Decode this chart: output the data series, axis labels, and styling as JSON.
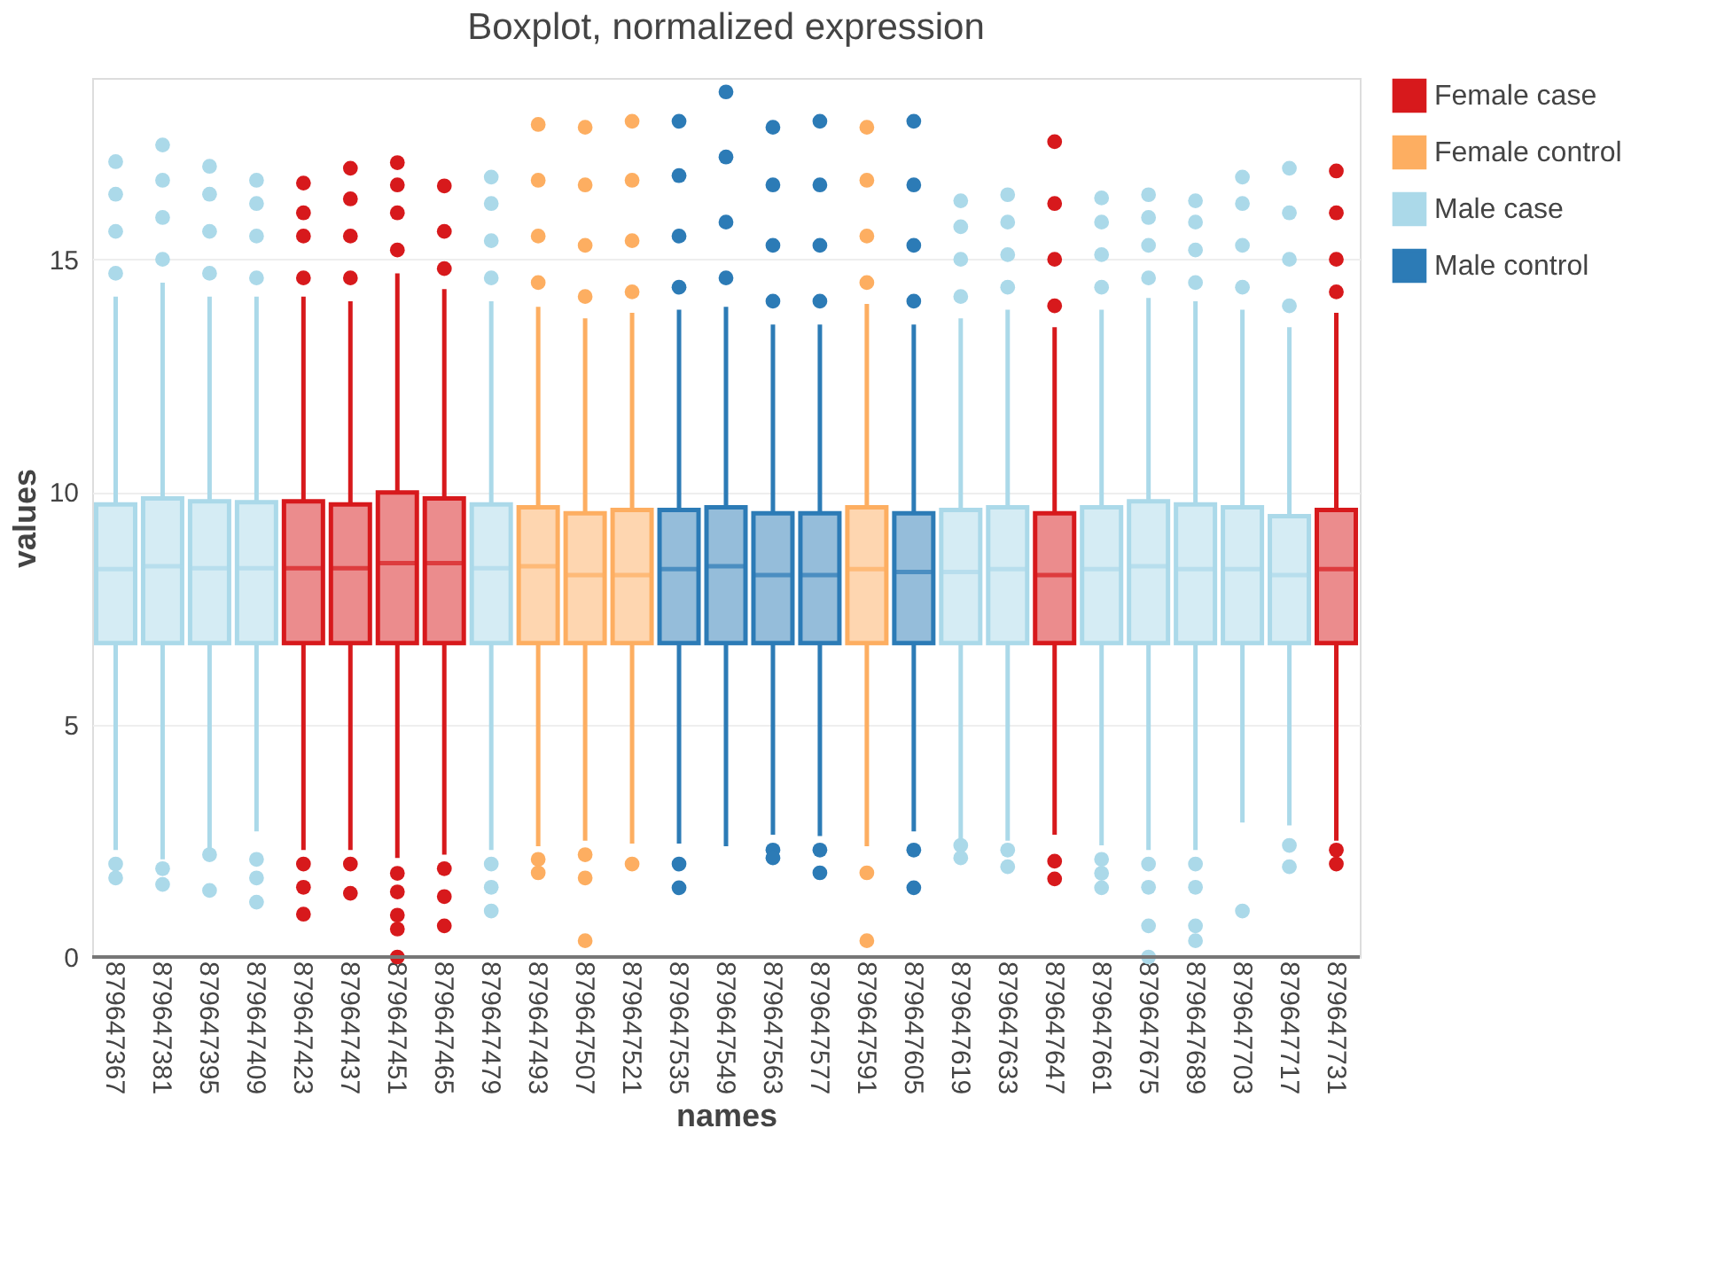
{
  "chart_data": {
    "type": "box",
    "title": "Boxplot, normalized expression",
    "xlabel": "names",
    "ylabel": "values",
    "categories": [
      "879647367",
      "879647381",
      "879647395",
      "879647409",
      "879647423",
      "879647437",
      "879647451",
      "879647465",
      "879647479",
      "879647493",
      "879647507",
      "879647521",
      "879647535",
      "879647549",
      "879647563",
      "879647577",
      "879647591",
      "879647605",
      "879647619",
      "879647633",
      "879647647",
      "879647661",
      "879647675",
      "879647689",
      "879647703",
      "879647717",
      "879647731"
    ],
    "ylim": [
      0,
      18.9
    ],
    "yticks": [
      0,
      5,
      10,
      15
    ],
    "grid": "y",
    "legend": "top right",
    "series": [
      {
        "name": "Female case",
        "color": "#d7191c",
        "boxes": [
          null,
          null,
          null,
          null,
          {
            "low": 2.3,
            "q1": 6.75,
            "median": 8.36,
            "q3": 9.8,
            "high": 14.2,
            "outliers": [
              14.6,
              15.5,
              16.0,
              16.64,
              2.0,
              1.5,
              0.92
            ]
          },
          {
            "low": 2.3,
            "q1": 6.75,
            "median": 8.36,
            "q3": 9.73,
            "high": 14.1,
            "outliers": [
              14.6,
              15.5,
              16.3,
              16.96,
              2.0,
              1.37
            ]
          },
          {
            "low": 2.13,
            "q1": 6.75,
            "median": 8.47,
            "q3": 9.99,
            "high": 14.7,
            "outliers": [
              15.2,
              16.0,
              16.6,
              17.08,
              1.8,
              1.4,
              0.9,
              0.6,
              0.0
            ]
          },
          {
            "low": 2.2,
            "q1": 6.75,
            "median": 8.47,
            "q3": 9.86,
            "high": 14.36,
            "outliers": [
              14.8,
              15.6,
              16.58,
              1.9,
              1.3,
              0.67
            ]
          },
          null,
          null,
          null,
          null,
          null,
          null,
          null,
          null,
          null,
          null,
          null,
          null,
          {
            "low": 2.63,
            "q1": 6.75,
            "median": 8.21,
            "q3": 9.54,
            "high": 13.54,
            "outliers": [
              14.0,
              15.0,
              16.2,
              17.53,
              2.06,
              1.68
            ]
          },
          null,
          null,
          null,
          null,
          null,
          {
            "low": 2.5,
            "q1": 6.75,
            "median": 8.34,
            "q3": 9.61,
            "high": 13.85,
            "outliers": [
              14.3,
              15.0,
              16.0,
              16.9,
              2.3,
              2.0
            ]
          }
        ]
      },
      {
        "name": "Female control",
        "color": "#fdae61",
        "boxes": [
          null,
          null,
          null,
          null,
          null,
          null,
          null,
          null,
          null,
          {
            "low": 2.38,
            "q1": 6.75,
            "median": 8.4,
            "q3": 9.67,
            "high": 13.98,
            "outliers": [
              14.5,
              15.5,
              16.7,
              17.9,
              2.1,
              1.81
            ]
          },
          {
            "low": 2.5,
            "q1": 6.75,
            "median": 8.21,
            "q3": 9.54,
            "high": 13.73,
            "outliers": [
              14.2,
              15.3,
              16.6,
              17.84,
              2.2,
              1.7,
              0.35
            ]
          },
          {
            "low": 2.44,
            "q1": 6.75,
            "median": 8.21,
            "q3": 9.61,
            "high": 13.85,
            "outliers": [
              14.3,
              15.4,
              16.7,
              17.97,
              2.0
            ]
          },
          null,
          null,
          null,
          null,
          {
            "low": 2.38,
            "q1": 6.75,
            "median": 8.34,
            "q3": 9.67,
            "high": 14.04,
            "outliers": [
              14.5,
              15.5,
              16.7,
              17.84,
              1.81,
              0.35
            ]
          },
          null,
          null,
          null,
          null,
          null,
          null,
          null,
          null,
          null,
          null
        ]
      },
      {
        "name": "Male case",
        "color": "#abd9e9",
        "boxes": [
          {
            "low": 2.3,
            "q1": 6.75,
            "median": 8.34,
            "q3": 9.73,
            "high": 14.2,
            "outliers": [
              14.7,
              15.6,
              16.4,
              17.1,
              2.0,
              1.7
            ]
          },
          {
            "low": 2.1,
            "q1": 6.75,
            "median": 8.4,
            "q3": 9.86,
            "high": 14.5,
            "outliers": [
              15.0,
              15.9,
              16.7,
              17.46,
              1.9,
              1.56
            ]
          },
          {
            "low": 2.3,
            "q1": 6.75,
            "median": 8.36,
            "q3": 9.8,
            "high": 14.2,
            "outliers": [
              14.7,
              15.6,
              16.4,
              17.0,
              2.2,
              1.43
            ]
          },
          {
            "low": 2.7,
            "q1": 6.75,
            "median": 8.36,
            "q3": 9.78,
            "high": 14.2,
            "outliers": [
              14.6,
              15.5,
              16.2,
              16.7,
              2.1,
              1.7,
              1.18
            ]
          },
          null,
          null,
          null,
          null,
          {
            "low": 2.3,
            "q1": 6.75,
            "median": 8.36,
            "q3": 9.73,
            "high": 14.1,
            "outliers": [
              14.6,
              15.4,
              16.2,
              16.77,
              2.0,
              1.5,
              0.99
            ]
          },
          null,
          null,
          null,
          null,
          null,
          null,
          null,
          null,
          null,
          {
            "low": 2.5,
            "q1": 6.75,
            "median": 8.28,
            "q3": 9.61,
            "high": 13.73,
            "outliers": [
              14.2,
              15.0,
              15.7,
              16.26,
              2.4,
              2.13
            ]
          },
          {
            "low": 2.5,
            "q1": 6.75,
            "median": 8.34,
            "q3": 9.67,
            "high": 13.92,
            "outliers": [
              14.4,
              15.1,
              15.8,
              16.39,
              2.3,
              1.94
            ]
          },
          null,
          {
            "low": 2.4,
            "q1": 6.75,
            "median": 8.34,
            "q3": 9.67,
            "high": 13.92,
            "outliers": [
              14.4,
              15.1,
              15.8,
              16.32,
              2.1,
              1.8,
              1.49
            ]
          },
          {
            "low": 2.3,
            "q1": 6.75,
            "median": 8.4,
            "q3": 9.8,
            "high": 14.17,
            "outliers": [
              14.6,
              15.3,
              15.9,
              16.39,
              2.0,
              1.5,
              0.67,
              0.0
            ]
          },
          {
            "low": 2.3,
            "q1": 6.75,
            "median": 8.34,
            "q3": 9.73,
            "high": 14.1,
            "outliers": [
              14.5,
              15.2,
              15.8,
              16.26,
              2.0,
              1.5,
              0.67,
              0.35
            ]
          },
          {
            "low": 2.89,
            "q1": 6.75,
            "median": 8.34,
            "q3": 9.67,
            "high": 13.92,
            "outliers": [
              14.4,
              15.3,
              16.2,
              16.77,
              0.99
            ]
          },
          {
            "low": 2.83,
            "q1": 6.75,
            "median": 8.21,
            "q3": 9.48,
            "high": 13.54,
            "outliers": [
              14.0,
              15.0,
              16.0,
              16.96,
              2.4,
              1.94
            ]
          },
          null
        ]
      },
      {
        "name": "Male control",
        "color": "#2c7bb6",
        "boxes": [
          null,
          null,
          null,
          null,
          null,
          null,
          null,
          null,
          null,
          null,
          null,
          null,
          {
            "low": 2.44,
            "q1": 6.75,
            "median": 8.34,
            "q3": 9.61,
            "high": 13.92,
            "outliers": [
              14.4,
              15.5,
              16.8,
              17.97,
              2.0,
              1.49
            ]
          },
          {
            "low": 2.38,
            "q1": 6.75,
            "median": 8.4,
            "q3": 9.67,
            "high": 13.98,
            "outliers": [
              14.6,
              15.8,
              17.2,
              18.6
            ]
          },
          {
            "low": 2.63,
            "q1": 6.75,
            "median": 8.21,
            "q3": 9.54,
            "high": 13.6,
            "outliers": [
              14.1,
              15.3,
              16.6,
              17.84,
              2.3,
              2.13
            ]
          },
          {
            "low": 2.6,
            "q1": 6.75,
            "median": 8.21,
            "q3": 9.54,
            "high": 13.6,
            "outliers": [
              14.1,
              15.3,
              16.6,
              17.97,
              2.3,
              1.81
            ]
          },
          null,
          {
            "low": 2.7,
            "q1": 6.75,
            "median": 8.28,
            "q3": 9.54,
            "high": 13.6,
            "outliers": [
              14.1,
              15.3,
              16.6,
              17.97,
              2.3,
              1.49
            ]
          },
          null,
          null,
          null,
          null,
          null,
          null,
          null,
          null,
          null
        ]
      }
    ]
  }
}
